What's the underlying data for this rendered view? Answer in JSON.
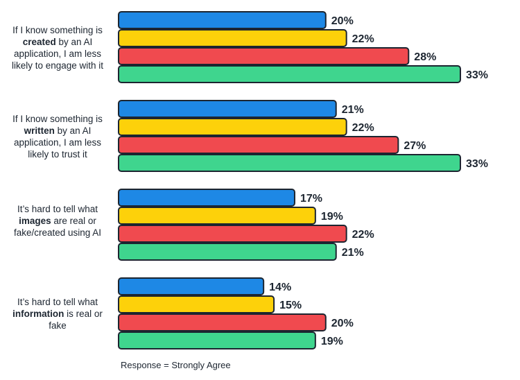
{
  "chart_data": {
    "type": "bar",
    "orientation": "horizontal",
    "groups": [
      {
        "label_parts": [
          "If I know something is ",
          "created",
          " by an AI application, I am less likely to engage with it"
        ],
        "values": [
          20,
          22,
          28,
          33
        ]
      },
      {
        "label_parts": [
          "If I know something is ",
          "written",
          " by an AI application, I am less likely to trust it"
        ],
        "values": [
          21,
          22,
          27,
          33
        ]
      },
      {
        "label_parts": [
          "It’s hard to tell what ",
          "images",
          " are real or fake/created using AI"
        ],
        "values": [
          17,
          19,
          22,
          21
        ]
      },
      {
        "label_parts": [
          "It’s hard to tell what ",
          "information",
          " is real or fake"
        ],
        "values": [
          14,
          15,
          20,
          19
        ]
      }
    ],
    "series_colors": [
      "#1e88e5",
      "#fdd10a",
      "#f04a4f",
      "#3fd58e"
    ],
    "value_suffix": "%",
    "xlim": [
      0,
      33
    ],
    "footnote": "Response = Strongly Agree"
  }
}
